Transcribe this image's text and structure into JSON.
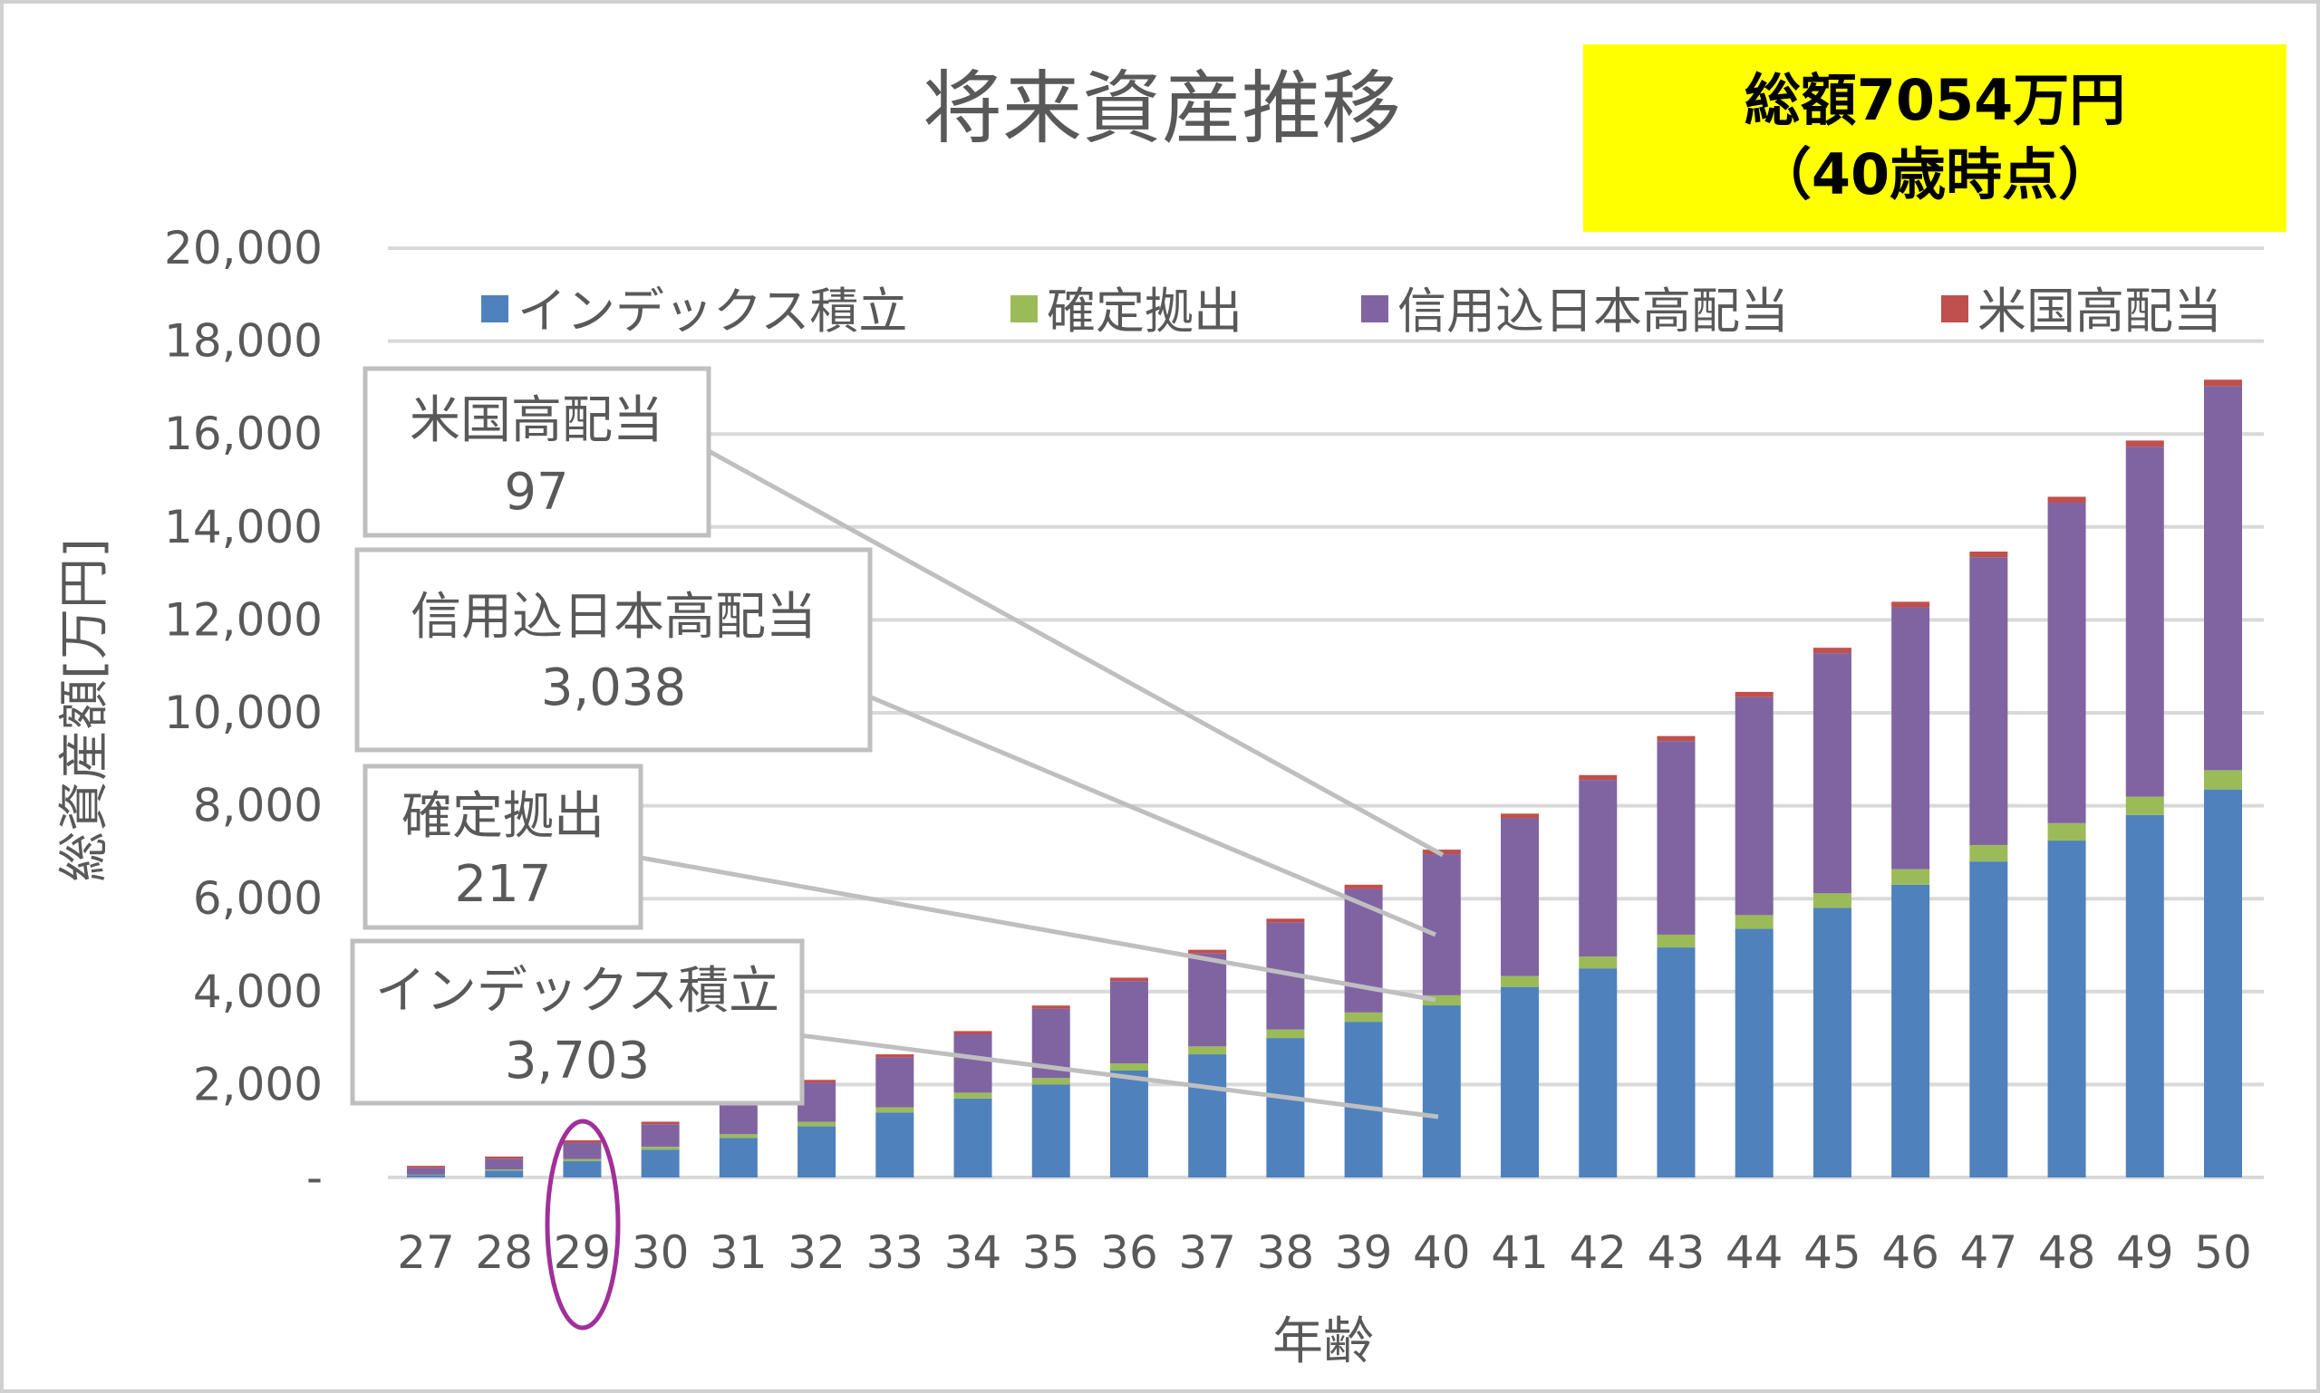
{
  "chart_data": {
    "type": "bar",
    "stacked": true,
    "title": "将来資産推移",
    "xlabel": "年齢",
    "ylabel": "総資産額[万円]",
    "ylim": [
      0,
      20000
    ],
    "yticks": [
      "-",
      "2,000",
      "4,000",
      "6,000",
      "8,000",
      "10,000",
      "12,000",
      "14,000",
      "16,000",
      "18,000",
      "20,000"
    ],
    "ytick_values": [
      0,
      2000,
      4000,
      6000,
      8000,
      10000,
      12000,
      14000,
      16000,
      18000,
      20000
    ],
    "grid": true,
    "legend_position": "top",
    "categories": [
      "27",
      "28",
      "29",
      "30",
      "31",
      "32",
      "33",
      "34",
      "35",
      "36",
      "37",
      "38",
      "39",
      "40",
      "41",
      "42",
      "43",
      "44",
      "45",
      "46",
      "47",
      "48",
      "49",
      "50"
    ],
    "series": [
      {
        "name": "インデックス積立",
        "color": "#4f81bd",
        "values": [
          50,
          150,
          350,
          600,
          850,
          1100,
          1400,
          1700,
          2000,
          2300,
          2650,
          3000,
          3350,
          3703,
          4100,
          4500,
          4950,
          5350,
          5800,
          6300,
          6800,
          7250,
          7800,
          8350
        ]
      },
      {
        "name": "確定拠出",
        "color": "#9bbb59",
        "values": [
          10,
          25,
          45,
          60,
          80,
          95,
          110,
          125,
          140,
          155,
          170,
          185,
          200,
          217,
          235,
          255,
          275,
          295,
          315,
          335,
          355,
          375,
          395,
          415
        ]
      },
      {
        "name": "信用込日本高配当",
        "color": "#8064a2",
        "values": [
          150,
          230,
          355,
          485,
          710,
          843,
          1075,
          1255,
          1488,
          1770,
          2000,
          2300,
          2660,
          3038,
          3395,
          3800,
          4167,
          4693,
          5169,
          5635,
          6191,
          6897,
          7533,
          8265
        ]
      },
      {
        "name": "米国高配当",
        "color": "#c0504d",
        "values": [
          40,
          45,
          50,
          55,
          60,
          62,
          65,
          70,
          72,
          75,
          80,
          85,
          90,
          97,
          100,
          105,
          108,
          112,
          116,
          120,
          124,
          128,
          132,
          140
        ]
      }
    ],
    "callouts": [
      {
        "series": "米国高配当",
        "value": "97",
        "category": "40"
      },
      {
        "series": "信用込日本高配当",
        "value": "3,038",
        "category": "40"
      },
      {
        "series": "確定拠出",
        "value": "217",
        "category": "40"
      },
      {
        "series": "インデックス積立",
        "value": "3,703",
        "category": "40"
      }
    ],
    "annotation": {
      "line1": "総額7054万円",
      "line2": "（40歳時点）",
      "background": "#ffff00"
    },
    "highlight": {
      "category": "29",
      "color": "#a0309a"
    }
  }
}
